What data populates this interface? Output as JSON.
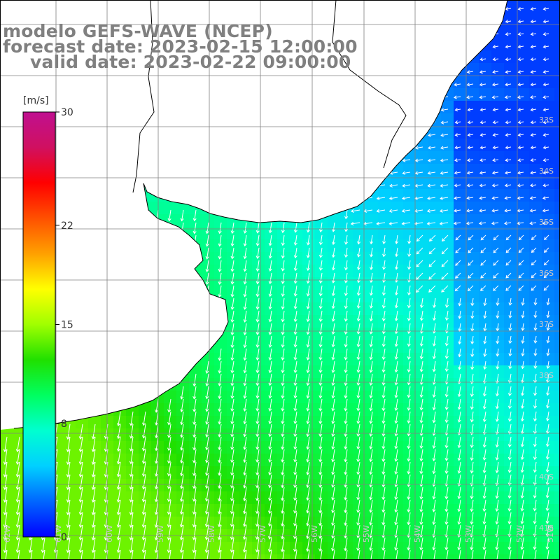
{
  "title": {
    "line1": "modelo GEFS-WAVE (NCEP)",
    "line2": "forecast date: 2023-02-15 12:00:00",
    "line3": "valid date: 2023-02-22 09:00:00"
  },
  "colorbar": {
    "unit": "[m/s]",
    "ticks": [
      {
        "value": 30,
        "label": "30"
      },
      {
        "value": 22,
        "label": "22"
      },
      {
        "value": 15,
        "label": "15"
      },
      {
        "value": 8,
        "label": "8"
      },
      {
        "value": 0,
        "label": "0"
      }
    ],
    "range": [
      0,
      30
    ],
    "colors": [
      "#0000ff",
      "#0066ff",
      "#00d0ff",
      "#00ffd0",
      "#00ff60",
      "#20e000",
      "#a0ff00",
      "#ffff00",
      "#ffa000",
      "#ff5000",
      "#ff0000",
      "#d01060",
      "#c01090"
    ]
  },
  "grid": {
    "lat_labels": [
      "33S",
      "34S",
      "35S",
      "36S",
      "37S",
      "38S",
      "40S",
      "41S"
    ],
    "lon_labels": [
      "62W",
      "61W",
      "60W",
      "59W",
      "58W",
      "57W",
      "56W",
      "55W",
      "54W",
      "53W",
      "52W",
      "51W"
    ]
  },
  "colors": {
    "land": "#ffffff",
    "coast": "#000000",
    "grid": "#808080",
    "arrow": "#ffffff"
  }
}
